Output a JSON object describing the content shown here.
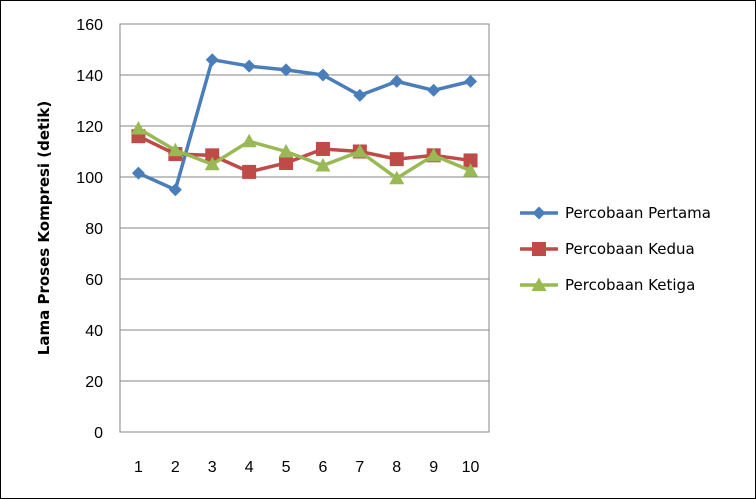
{
  "chart_data": {
    "type": "line",
    "title": "",
    "xlabel": "",
    "ylabel": "Lama Proses Kompresi (detik)",
    "x": [
      1,
      2,
      3,
      4,
      5,
      6,
      7,
      8,
      9,
      10
    ],
    "x_tick_labels": [
      "1",
      "2",
      "3",
      "4",
      "5",
      "6",
      "7",
      "8",
      "9",
      "10"
    ],
    "ylim": [
      0,
      160
    ],
    "y_ticks": [
      0,
      20,
      40,
      60,
      80,
      100,
      120,
      140,
      160
    ],
    "grid": "horizontal",
    "legend_position": "right",
    "series": [
      {
        "name": "Percobaan Pertama",
        "color": "#4a7ebb",
        "marker": "diamond",
        "values": [
          101.5,
          95,
          146,
          143.5,
          142,
          140,
          132,
          137.5,
          134,
          137.5
        ]
      },
      {
        "name": "Percobaan Kedua",
        "color": "#be4b48",
        "marker": "square",
        "values": [
          116,
          109,
          108.5,
          102,
          105.5,
          111,
          110,
          107,
          108.5,
          106.5
        ]
      },
      {
        "name": "Percobaan Ketiga",
        "color": "#98b954",
        "marker": "triangle",
        "values": [
          119,
          110.5,
          105,
          114,
          110,
          104.5,
          110,
          99.5,
          108.5,
          102.5
        ]
      }
    ]
  }
}
